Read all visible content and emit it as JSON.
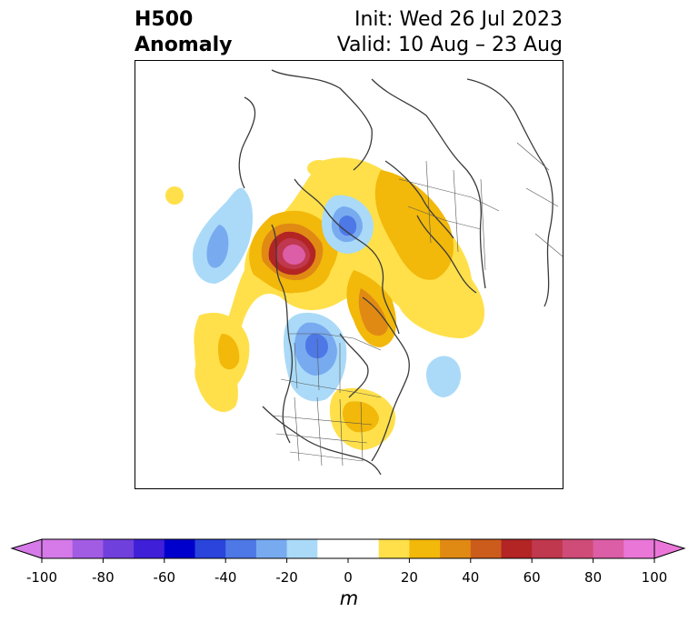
{
  "title": {
    "variable": "H500",
    "type": "Anomaly",
    "init": "Init: Wed 26 Jul 2023",
    "valid": "Valid: 10 Aug – 23 Aug"
  },
  "colorbar": {
    "unit": "m",
    "ticks": [
      "-100",
      "-80",
      "-60",
      "-40",
      "-20",
      "0",
      "20",
      "40",
      "60",
      "80",
      "100"
    ],
    "tick_values": [
      -100,
      -80,
      -60,
      -40,
      -20,
      0,
      20,
      40,
      60,
      80,
      100
    ],
    "bins": [
      {
        "value": -95,
        "color": "#d57ae8"
      },
      {
        "value": -85,
        "color": "#a25ce4"
      },
      {
        "value": -75,
        "color": "#7040dc"
      },
      {
        "value": -65,
        "color": "#3f1fd8"
      },
      {
        "value": -55,
        "color": "#0000cc"
      },
      {
        "value": -45,
        "color": "#2a44dc"
      },
      {
        "value": -35,
        "color": "#4d78e6"
      },
      {
        "value": -25,
        "color": "#78aaf0"
      },
      {
        "value": -15,
        "color": "#aadaf8"
      },
      {
        "value": -5,
        "color": "#ffffff"
      },
      {
        "value": 5,
        "color": "#ffffff"
      },
      {
        "value": 15,
        "color": "#ffe04a"
      },
      {
        "value": 25,
        "color": "#f2b80a"
      },
      {
        "value": 35,
        "color": "#e08a14"
      },
      {
        "value": 45,
        "color": "#cc5c1c"
      },
      {
        "value": 55,
        "color": "#b32424"
      },
      {
        "value": 65,
        "color": "#c0384e"
      },
      {
        "value": 75,
        "color": "#cf4c78"
      },
      {
        "value": 85,
        "color": "#dc5ea6"
      },
      {
        "value": 95,
        "color": "#ea76d8"
      }
    ],
    "extend_min_color": "#d57ae8",
    "extend_max_color": "#ea76d8"
  }
}
